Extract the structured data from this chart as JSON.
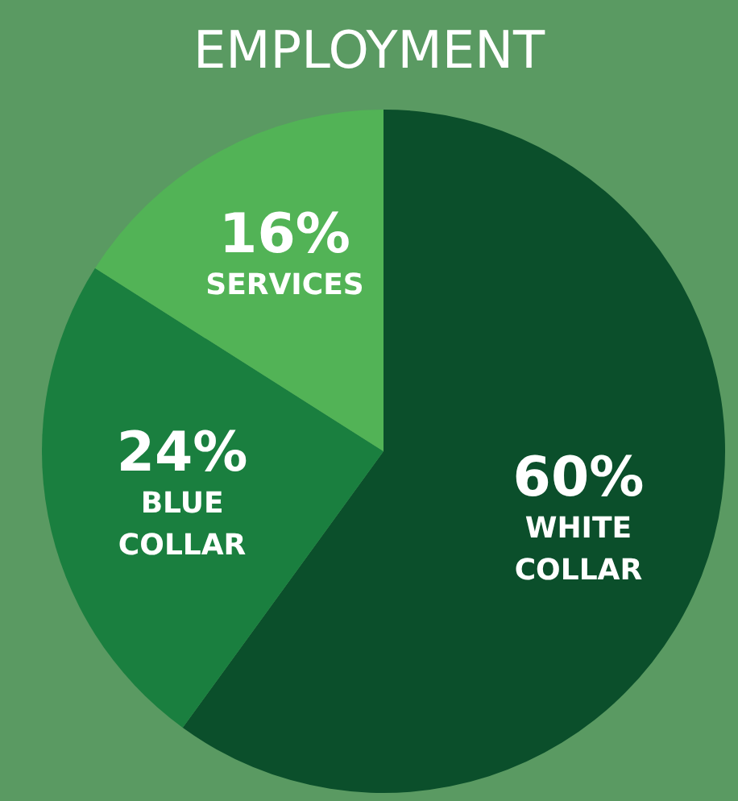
{
  "chart_data": {
    "type": "pie",
    "title": "EMPLOYMENT",
    "categories": [
      "WHITE COLLAR",
      "BLUE COLLAR",
      "SERVICES"
    ],
    "values": [
      60,
      24,
      16
    ],
    "colors": [
      "#0b4f2b",
      "#1a7f3f",
      "#52b356"
    ],
    "value_labels": [
      "60%",
      "24%",
      "16%"
    ],
    "legend": false
  }
}
